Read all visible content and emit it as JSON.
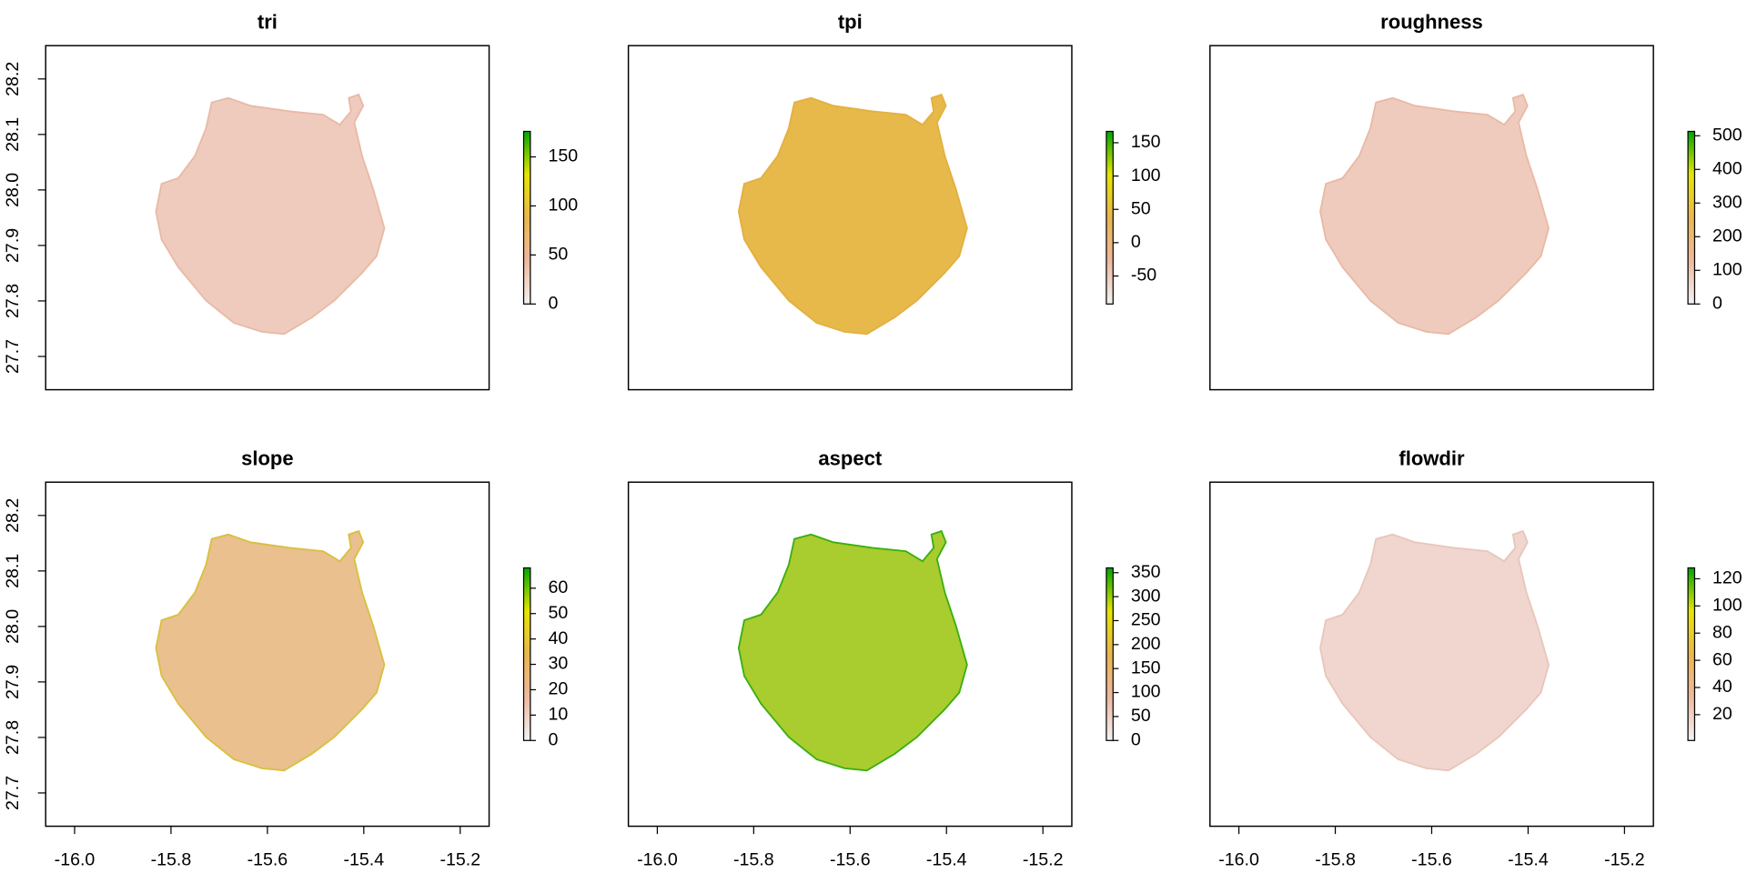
{
  "chart_data": [
    {
      "type": "raster",
      "title": "tri",
      "xlim": [
        -16.06,
        -15.14
      ],
      "ylim": [
        27.64,
        28.26
      ],
      "yticks": [
        {
          "value": 27.7,
          "label": "27.7"
        },
        27.8,
        27.9,
        {
          "value": 28,
          "label": "28.0"
        },
        28.1,
        28.2
      ],
      "zlim": [
        0,
        176
      ],
      "zticks": [
        0,
        50,
        100,
        150
      ],
      "colors": [
        "#F2F2F2",
        "#EEB99F",
        "#EAB64E",
        "#E6E600",
        "#00A600"
      ]
    },
    {
      "type": "raster",
      "title": "tpi",
      "xlim": [
        -16.06,
        -15.14
      ],
      "ylim": [
        27.64,
        28.26
      ],
      "zlim": [
        -92,
        167
      ],
      "zticks": [
        -50,
        0,
        50,
        100,
        150
      ],
      "colors": [
        "#F2F2F2",
        "#EEB99F",
        "#EAB64E",
        "#E6E600",
        "#00A600"
      ]
    },
    {
      "type": "raster",
      "title": "roughness",
      "xlim": [
        -16.06,
        -15.14
      ],
      "ylim": [
        27.64,
        28.26
      ],
      "zlim": [
        0,
        513
      ],
      "zticks": [
        0,
        100,
        200,
        300,
        400,
        500
      ],
      "colors": [
        "#F2F2F2",
        "#EEB99F",
        "#EAB64E",
        "#E6E600",
        "#00A600"
      ]
    },
    {
      "type": "raster",
      "title": "slope",
      "xlim": [
        -16.06,
        -15.14
      ],
      "ylim": [
        27.64,
        28.26
      ],
      "xticks": [
        {
          "value": -16,
          "label": "-16.0"
        },
        -15.8,
        -15.6,
        -15.4,
        -15.2
      ],
      "yticks": [
        {
          "value": 27.7,
          "label": "27.7"
        },
        27.8,
        27.9,
        {
          "value": 28,
          "label": "28.0"
        },
        28.1,
        28.2
      ],
      "zlim": [
        0,
        68
      ],
      "zticks": [
        0,
        10,
        20,
        30,
        40,
        50,
        60
      ],
      "colors": [
        "#F2F2F2",
        "#EEB99F",
        "#EAB64E",
        "#E6E600",
        "#00A600"
      ]
    },
    {
      "type": "raster",
      "title": "aspect",
      "xlim": [
        -16.06,
        -15.14
      ],
      "ylim": [
        27.64,
        28.26
      ],
      "xticks": [
        {
          "value": -16,
          "label": "-16.0"
        },
        -15.8,
        -15.6,
        -15.4,
        -15.2
      ],
      "zlim": [
        0,
        360
      ],
      "zticks": [
        0,
        50,
        100,
        150,
        200,
        250,
        300,
        350
      ],
      "colors": [
        "#F2F2F2",
        "#EEB99F",
        "#EAB64E",
        "#E6E600",
        "#00A600"
      ]
    },
    {
      "type": "raster",
      "title": "flowdir",
      "xlim": [
        -16.06,
        -15.14
      ],
      "ylim": [
        27.64,
        28.26
      ],
      "xticks": [
        {
          "value": -16,
          "label": "-16.0"
        },
        -15.8,
        -15.6,
        -15.4,
        -15.2
      ],
      "zlim": [
        1,
        128
      ],
      "zticks": [
        20,
        40,
        60,
        80,
        100,
        120
      ],
      "colors": [
        "#F2F2F2",
        "#EEB99F",
        "#EAB64E",
        "#E6E600",
        "#00A600"
      ]
    }
  ]
}
